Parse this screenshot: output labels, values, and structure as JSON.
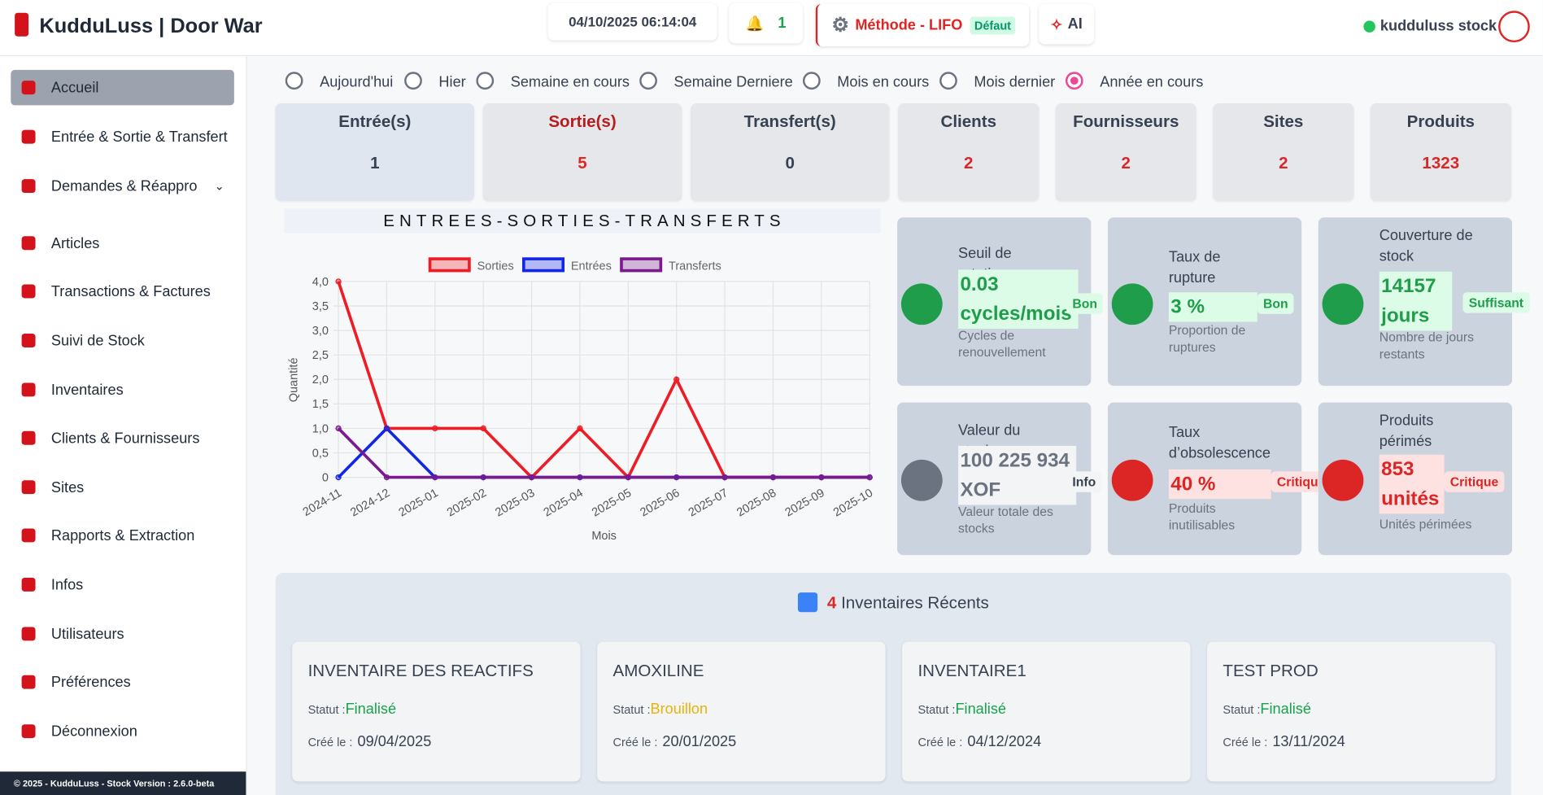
{
  "header": {
    "brand": "KudduLuss",
    "separator": "|",
    "company": "Door War",
    "datetime": "04/10/2025 06:14:04",
    "notifications": "1",
    "method": "Méthode - LIFO",
    "method_badge": "Défaut",
    "ai": "AI",
    "user": "kudduluss stock"
  },
  "sidebar": {
    "items": [
      "Accueil",
      "Entrée & Sortie & Transfert",
      "Demandes & Réappro",
      "Articles",
      "Transactions & Factures",
      "Suivi de Stock",
      "Inventaires",
      "Clients & Fournisseurs",
      "Sites",
      "Rapports & Extraction",
      "Infos",
      "Utilisateurs",
      "Préférences",
      "Déconnexion"
    ],
    "footer": "© 2025 - KudduLuss - Stock Version : 2.6.0-beta"
  },
  "filters": {
    "options": [
      "Aujourd'hui",
      "Hier",
      "Semaine en cours",
      "Semaine Derniere",
      "Mois en cours",
      "Mois dernier",
      "Année en cours"
    ],
    "selected": 6
  },
  "stats": [
    {
      "label": "Entrée(s)",
      "value": 1
    },
    {
      "label": "Sortie(s)",
      "value": 5
    },
    {
      "label": "Transfert(s)",
      "value": 0
    },
    {
      "label": "Clients",
      "value": 2
    },
    {
      "label": "Fournisseurs",
      "value": 2
    },
    {
      "label": "Sites",
      "value": 2
    },
    {
      "label": "Produits",
      "value": 1323
    }
  ],
  "kpis": [
    {
      "title": "Seuil de rotation",
      "value": "0.03 cycles/mois",
      "badge": "Bon",
      "description": "Cycles de renouvellement",
      "color": "#1f9d4b"
    },
    {
      "title": "Taux de rupture",
      "value": "3 %",
      "badge": "Bon",
      "description": "Proportion de ruptures",
      "color": "#1f9d4b"
    },
    {
      "title": "Couverture de stock",
      "value": "14157 jours",
      "badge": "Suffisant",
      "description": "Nombre de jours restants",
      "color": "#1f9d4b"
    },
    {
      "title": "Valeur du stock",
      "value": "100 225 934 XOF",
      "badge": "Info",
      "description": "Valeur totale des stocks",
      "color": "#6b7280"
    },
    {
      "title": "Taux d’obsolescence",
      "value": "40 %",
      "badge": "Critique",
      "description": "Produits inutilisables",
      "color": "#dc2626"
    },
    {
      "title": "Produits périmés",
      "value": "853 unités",
      "badge": "Critique",
      "description": "Unités périmées",
      "color": "#dc2626"
    }
  ],
  "inventories": {
    "count": 4,
    "title": "Inventaires Récents",
    "status_label": "Statut :",
    "created_label": "Créé le :",
    "items": [
      {
        "name": "INVENTAIRE DES REACTIFS",
        "status": "Finalisé",
        "date": "09/04/2025",
        "color": "#16a34a"
      },
      {
        "name": "AMOXILINE",
        "status": "Brouillon",
        "date": "20/01/2025",
        "color": "#eab308"
      },
      {
        "name": "INVENTAIRE1",
        "status": "Finalisé",
        "date": "04/12/2024",
        "color": "#16a34a"
      },
      {
        "name": "TEST PROD",
        "status": "Finalisé",
        "date": "13/11/2024",
        "color": "#16a34a"
      }
    ]
  },
  "chart_data": {
    "type": "line",
    "title": "ENTREES-SORTIES-TRANSFERTS",
    "x_label": "Mois",
    "y_label": "Quantité",
    "categories": [
      "2024-11",
      "2024-12",
      "2025-01",
      "2025-02",
      "2025-03",
      "2025-04",
      "2025-05",
      "2025-06",
      "2025-07",
      "2025-08",
      "2025-09",
      "2025-10"
    ],
    "series": [
      {
        "name": "Sorties",
        "color": "#ee1c25",
        "values": [
          4,
          1,
          1,
          1,
          0,
          1,
          0,
          2,
          0,
          0,
          0,
          0
        ]
      },
      {
        "name": "Entrées",
        "color": "#1226e6",
        "values": [
          0,
          1,
          0,
          0,
          0,
          0,
          0,
          0,
          0,
          0,
          0,
          0
        ]
      },
      {
        "name": "Transferts",
        "color": "#7a1a8c",
        "values": [
          1,
          0,
          0,
          0,
          0,
          0,
          0,
          0,
          0,
          0,
          0,
          0
        ]
      }
    ],
    "ylim": [
      0,
      4
    ],
    "yticks": [
      0,
      {
        "value": 0.5,
        "label": "0,5"
      },
      {
        "value": 1,
        "label": "1,0"
      },
      {
        "value": 1.5,
        "label": "1,5"
      },
      {
        "value": 2,
        "label": "2,0"
      },
      {
        "value": 2.5,
        "label": "2,5"
      },
      {
        "value": 3,
        "label": "3,0"
      },
      {
        "value": 3.5,
        "label": "3,5"
      },
      {
        "value": 4,
        "label": "4,0"
      }
    ],
    "grid": true
  }
}
